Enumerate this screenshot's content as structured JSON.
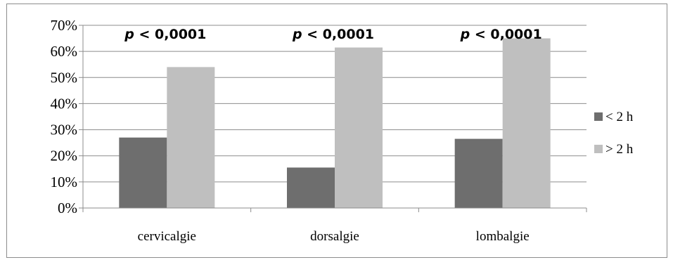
{
  "chart_data": {
    "type": "bar",
    "title": "",
    "xlabel": "",
    "ylabel": "",
    "categories": [
      "cervicalgie",
      "dorsalgie",
      "lombalgie"
    ],
    "series": [
      {
        "name": "< 2 h",
        "values": [
          27,
          15.5,
          26.5
        ],
        "color": "#6e6e6e"
      },
      {
        "name": "> 2 h",
        "values": [
          54,
          61.5,
          65
        ],
        "color": "#bfbfbf"
      }
    ],
    "ylim": [
      0,
      70
    ],
    "yticks": [
      0,
      10,
      20,
      30,
      40,
      50,
      60,
      70
    ],
    "ytick_labels": [
      "0%",
      "10%",
      "20%",
      "30%",
      "40%",
      "50%",
      "60%",
      "70%"
    ],
    "grid": true,
    "legend_position": "right",
    "annotations": [
      {
        "p": "p",
        "rest": " < 0,0001"
      },
      {
        "p": "p",
        "rest": " < 0,0001"
      },
      {
        "p": "p",
        "rest": " < 0,0001"
      }
    ]
  }
}
